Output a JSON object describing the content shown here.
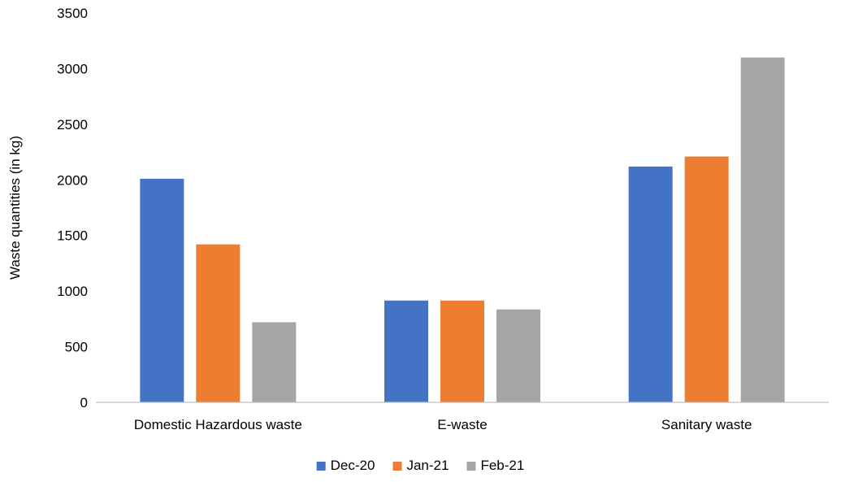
{
  "chart_data": {
    "type": "bar",
    "title": "",
    "xlabel": "",
    "ylabel": "Waste quantities (in kg)",
    "categories": [
      "Domestic Hazardous waste",
      "E-waste",
      "Sanitary waste"
    ],
    "series": [
      {
        "name": "Dec-20",
        "color": "#4472c4",
        "values": [
          2010,
          915,
          2120
        ]
      },
      {
        "name": "Jan-21",
        "color": "#ed7d31",
        "values": [
          1420,
          915,
          2210
        ]
      },
      {
        "name": "Feb-21",
        "color": "#a5a5a5",
        "values": [
          720,
          835,
          3100
        ]
      }
    ],
    "ylim": [
      0,
      3500
    ],
    "yticks": [
      "0",
      "500",
      "1000",
      "1500",
      "2000",
      "2500",
      "3000",
      "3500"
    ],
    "grid": false,
    "legend": "bottom-center"
  }
}
